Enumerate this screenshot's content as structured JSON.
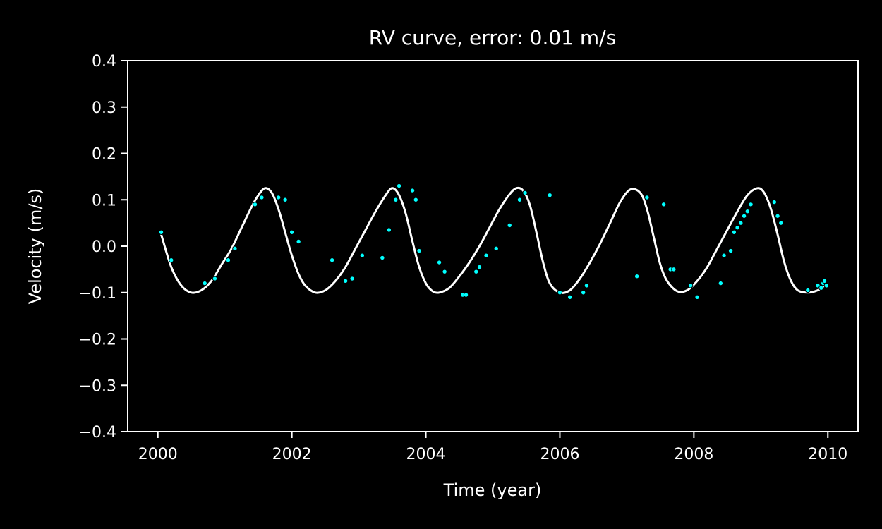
{
  "chart_data": {
    "type": "line",
    "title": "RV curve, error: 0.01 m/s",
    "xlabel": "Time (year)",
    "ylabel": "Velocity (m/s)",
    "xlim": [
      1999.55,
      2010.45
    ],
    "ylim": [
      -0.4,
      0.4
    ],
    "x_ticks": [
      2000,
      2002,
      2004,
      2006,
      2008,
      2010
    ],
    "x_tick_labels": [
      "2000",
      "2002",
      "2004",
      "2006",
      "2008",
      "2010"
    ],
    "y_ticks": [
      -0.4,
      -0.3,
      -0.2,
      -0.1,
      0.0,
      0.1,
      0.2,
      0.3,
      0.4
    ],
    "y_tick_labels": [
      "−0.4",
      "−0.3",
      "−0.2",
      "−0.1",
      "0.0",
      "0.1",
      "0.2",
      "0.3",
      "0.4"
    ],
    "grid": false,
    "colors": {
      "background": "#000000",
      "model": "#ffffff",
      "observations": "#00ffff"
    },
    "series": [
      {
        "kind": "line",
        "x": [
          2000.05,
          2000.2,
          2000.35,
          2000.5,
          2000.65,
          2000.8,
          2000.95,
          2001.1,
          2001.25,
          2001.4,
          2001.5,
          2001.6,
          2001.7,
          2001.8,
          2001.9,
          2002.0,
          2002.1,
          2002.2,
          2002.35,
          2002.5,
          2002.65,
          2002.8,
          2002.95,
          2003.1,
          2003.25,
          2003.4,
          2003.5,
          2003.6,
          2003.7,
          2003.8,
          2003.9,
          2004.0,
          2004.1,
          2004.2,
          2004.35,
          2004.5,
          2004.65,
          2004.8,
          2004.95,
          2005.1,
          2005.25,
          2005.35,
          2005.45,
          2005.55,
          2005.65,
          2005.75,
          2005.85,
          2006.0,
          2006.15,
          2006.3,
          2006.45,
          2006.6,
          2006.75,
          2006.9,
          2007.05,
          2007.2,
          2007.3,
          2007.4,
          2007.5,
          2007.6,
          2007.75,
          2007.9,
          2008.05,
          2008.2,
          2008.35,
          2008.5,
          2008.65,
          2008.8,
          2008.95,
          2009.05,
          2009.15,
          2009.25,
          2009.35,
          2009.45,
          2009.55,
          2009.7,
          2009.85,
          2009.95
        ],
        "y": [
          0.025,
          -0.045,
          -0.085,
          -0.1,
          -0.095,
          -0.075,
          -0.04,
          -0.005,
          0.04,
          0.085,
          0.11,
          0.125,
          0.115,
          0.08,
          0.03,
          -0.02,
          -0.06,
          -0.085,
          -0.1,
          -0.095,
          -0.075,
          -0.045,
          -0.005,
          0.035,
          0.075,
          0.11,
          0.125,
          0.11,
          0.07,
          0.01,
          -0.045,
          -0.08,
          -0.097,
          -0.1,
          -0.09,
          -0.065,
          -0.035,
          0.0,
          0.04,
          0.08,
          0.112,
          0.125,
          0.12,
          0.09,
          0.03,
          -0.035,
          -0.08,
          -0.1,
          -0.095,
          -0.07,
          -0.035,
          0.005,
          0.05,
          0.095,
          0.122,
          0.115,
          0.08,
          0.02,
          -0.04,
          -0.075,
          -0.097,
          -0.095,
          -0.075,
          -0.045,
          -0.005,
          0.035,
          0.075,
          0.11,
          0.125,
          0.115,
          0.08,
          0.025,
          -0.035,
          -0.075,
          -0.095,
          -0.1,
          -0.095,
          -0.085
        ]
      },
      {
        "kind": "scatter",
        "x": [
          2000.05,
          2000.2,
          2000.7,
          2000.85,
          2001.05,
          2001.15,
          2001.45,
          2001.55,
          2001.8,
          2001.9,
          2002.0,
          2002.1,
          2002.6,
          2002.8,
          2002.9,
          2003.05,
          2003.35,
          2003.45,
          2003.55,
          2003.6,
          2003.8,
          2003.85,
          2003.9,
          2004.2,
          2004.28,
          2004.55,
          2004.6,
          2004.75,
          2004.8,
          2004.9,
          2005.05,
          2005.25,
          2005.4,
          2005.48,
          2005.85,
          2006.0,
          2006.15,
          2006.35,
          2006.4,
          2007.15,
          2007.3,
          2007.55,
          2007.65,
          2007.7,
          2007.95,
          2008.05,
          2008.4,
          2008.45,
          2008.55,
          2008.6,
          2008.65,
          2008.7,
          2008.75,
          2008.8,
          2008.85,
          2009.2,
          2009.25,
          2009.3,
          2009.7,
          2009.85,
          2009.9,
          2009.93,
          2009.95,
          2009.98
        ],
        "y": [
          0.03,
          -0.03,
          -0.08,
          -0.07,
          -0.03,
          -0.005,
          0.09,
          0.105,
          0.105,
          0.1,
          0.03,
          0.01,
          -0.03,
          -0.075,
          -0.07,
          -0.02,
          -0.025,
          0.035,
          0.1,
          0.13,
          0.12,
          0.1,
          -0.01,
          -0.035,
          -0.055,
          -0.105,
          -0.105,
          -0.055,
          -0.045,
          -0.02,
          -0.005,
          0.045,
          0.1,
          0.115,
          0.11,
          -0.1,
          -0.11,
          -0.1,
          -0.085,
          -0.065,
          0.105,
          0.09,
          -0.05,
          -0.05,
          -0.085,
          -0.11,
          -0.08,
          -0.02,
          -0.01,
          0.03,
          0.04,
          0.05,
          0.065,
          0.075,
          0.09,
          0.095,
          0.065,
          0.05,
          -0.095,
          -0.085,
          -0.09,
          -0.08,
          -0.075,
          -0.085
        ]
      }
    ]
  }
}
